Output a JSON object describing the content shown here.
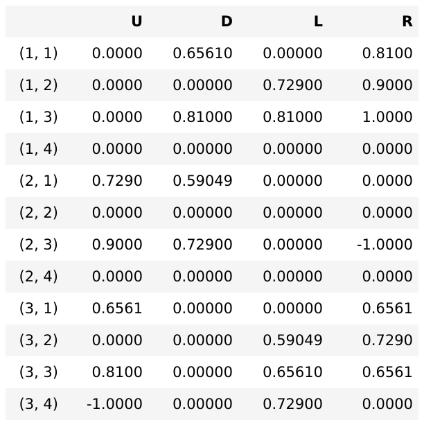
{
  "table": {
    "columns": [
      "",
      "U",
      "D",
      "L",
      "R"
    ],
    "rows": [
      {
        "index": "(1, 1)",
        "U": "0.0000",
        "D": "0.65610",
        "L": "0.00000",
        "R": "0.8100"
      },
      {
        "index": "(1, 2)",
        "U": "0.0000",
        "D": "0.00000",
        "L": "0.72900",
        "R": "0.9000"
      },
      {
        "index": "(1, 3)",
        "U": "0.0000",
        "D": "0.81000",
        "L": "0.81000",
        "R": "1.0000"
      },
      {
        "index": "(1, 4)",
        "U": "0.0000",
        "D": "0.00000",
        "L": "0.00000",
        "R": "0.0000"
      },
      {
        "index": "(2, 1)",
        "U": "0.7290",
        "D": "0.59049",
        "L": "0.00000",
        "R": "0.0000"
      },
      {
        "index": "(2, 2)",
        "U": "0.0000",
        "D": "0.00000",
        "L": "0.00000",
        "R": "0.0000"
      },
      {
        "index": "(2, 3)",
        "U": "0.9000",
        "D": "0.72900",
        "L": "0.00000",
        "R": "-1.0000"
      },
      {
        "index": "(2, 4)",
        "U": "0.0000",
        "D": "0.00000",
        "L": "0.00000",
        "R": "0.0000"
      },
      {
        "index": "(3, 1)",
        "U": "0.6561",
        "D": "0.00000",
        "L": "0.00000",
        "R": "0.6561"
      },
      {
        "index": "(3, 2)",
        "U": "0.0000",
        "D": "0.00000",
        "L": "0.59049",
        "R": "0.7290"
      },
      {
        "index": "(3, 3)",
        "U": "0.8100",
        "D": "0.00000",
        "L": "0.65610",
        "R": "0.6561"
      },
      {
        "index": "(3, 4)",
        "U": "-1.0000",
        "D": "0.00000",
        "L": "0.72900",
        "R": "0.0000"
      }
    ]
  }
}
